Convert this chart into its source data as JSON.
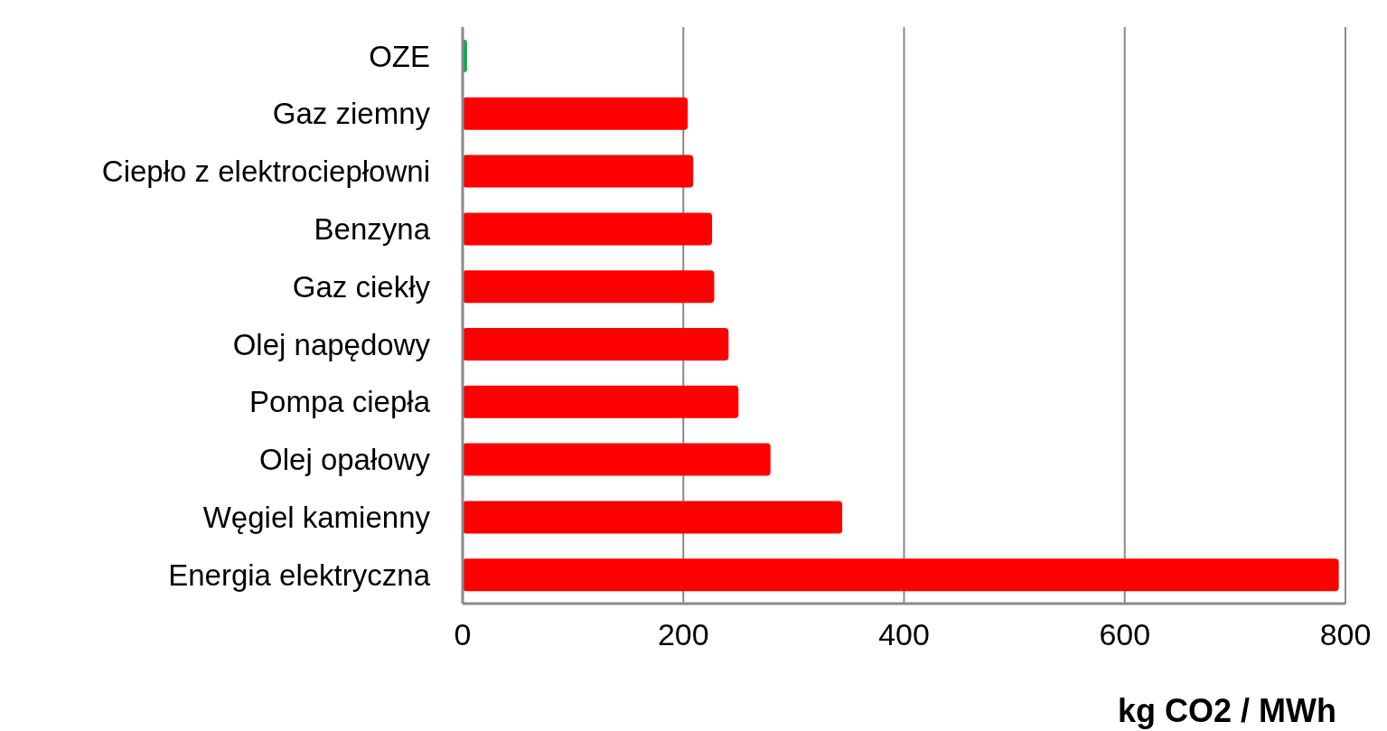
{
  "chart_data": {
    "type": "bar",
    "orientation": "horizontal",
    "xlabel": "kg CO2 / MWh",
    "categories": [
      "OZE",
      "Gaz ziemny",
      "Ciepło z elektrociepłowni",
      "Benzyna",
      "Gaz ciekły",
      "Olej napędowy",
      "Pompa ciepła",
      "Olej opałowy",
      "Węgiel kamienny",
      "Energia elektryczna"
    ],
    "values": [
      4,
      204,
      209,
      226,
      228,
      241,
      250,
      279,
      344,
      794
    ],
    "colors": [
      "#00b050",
      "#ff0000",
      "#ff0000",
      "#ff0000",
      "#ff0000",
      "#ff0000",
      "#ff0000",
      "#ff0000",
      "#ff0000",
      "#ff0000"
    ],
    "xlim": [
      0,
      800
    ],
    "xticks": [
      0,
      200,
      400,
      600,
      800
    ],
    "grid": "x"
  }
}
